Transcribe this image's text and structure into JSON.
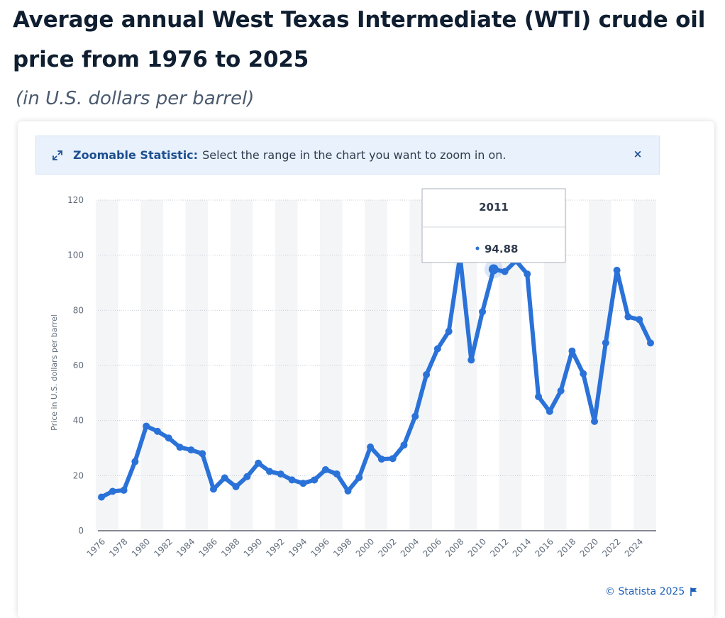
{
  "header": {
    "title": "Average annual West Texas Intermediate (WTI) crude oil price from 1976 to 2025",
    "subtitle": "(in U.S. dollars per barrel)"
  },
  "zoom_banner": {
    "title": "Zoomable Statistic:",
    "text": "Select the range in the chart you want to zoom in on.",
    "close_label": "×",
    "icon": "expand-icon"
  },
  "footer": {
    "credit": "© Statista 2025",
    "flag_icon": "flag-icon"
  },
  "tooltip": {
    "year": "2011",
    "value": "94.88"
  },
  "colors": {
    "line": "#2a72d8",
    "band": "#f4f5f7",
    "accent": "#1d4f91"
  },
  "chart_data": {
    "type": "line",
    "title": "",
    "ylabel": "Price in U.S. dollars per barrel",
    "xlabel": "",
    "ylim": [
      0,
      120
    ],
    "yticks": [
      0,
      20,
      40,
      60,
      80,
      100,
      120
    ],
    "xtick_labels": [
      "1976",
      "1978",
      "1980",
      "1982",
      "1984",
      "1986",
      "1988",
      "1990",
      "1992",
      "1994",
      "1996",
      "1998",
      "2000",
      "2002",
      "2004",
      "2006",
      "2008",
      "2010",
      "2012",
      "2014",
      "2016",
      "2018",
      "2020",
      "2022",
      "2024"
    ],
    "grid": true,
    "x": [
      1976,
      1977,
      1978,
      1979,
      1980,
      1981,
      1982,
      1983,
      1984,
      1985,
      1986,
      1987,
      1988,
      1989,
      1990,
      1991,
      1992,
      1993,
      1994,
      1995,
      1996,
      1997,
      1998,
      1999,
      2000,
      2001,
      2002,
      2003,
      2004,
      2005,
      2006,
      2007,
      2008,
      2009,
      2010,
      2011,
      2012,
      2013,
      2014,
      2015,
      2016,
      2017,
      2018,
      2019,
      2020,
      2021,
      2022,
      2023,
      2024,
      2025
    ],
    "values": [
      12.2,
      14.3,
      14.7,
      25.1,
      37.96,
      36.08,
      33.65,
      30.3,
      29.32,
      27.98,
      15.1,
      19.18,
      15.97,
      19.64,
      24.53,
      21.54,
      20.57,
      18.45,
      17.21,
      18.42,
      22.16,
      20.61,
      14.42,
      19.34,
      30.38,
      25.98,
      26.18,
      31.08,
      41.51,
      56.64,
      66.05,
      72.34,
      99.67,
      61.95,
      79.48,
      94.88,
      94.05,
      97.98,
      93.17,
      48.66,
      43.29,
      50.8,
      65.23,
      56.99,
      39.68,
      68.17,
      94.53,
      77.64,
      76.63,
      68.14
    ]
  }
}
